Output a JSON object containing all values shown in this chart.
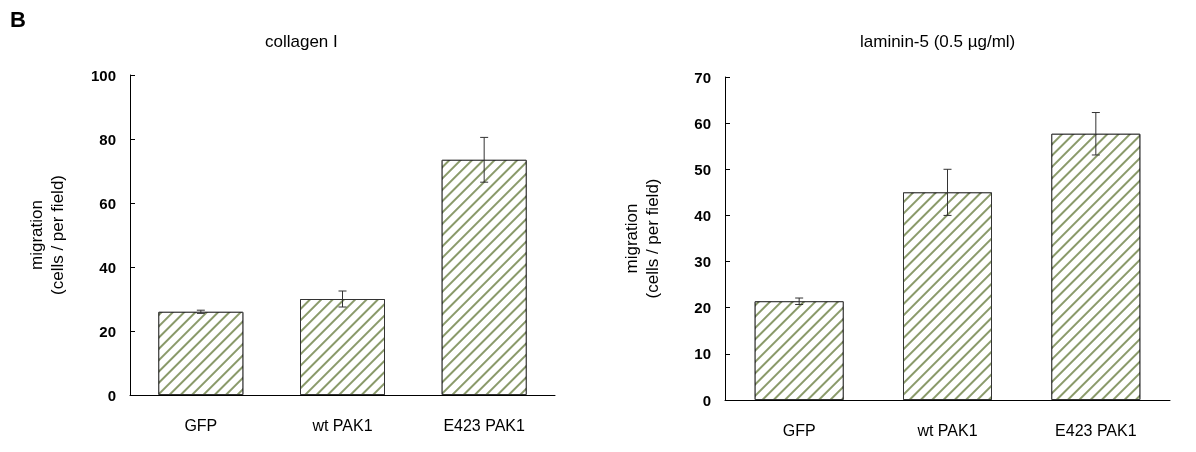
{
  "chart_data": [
    {
      "type": "bar",
      "title": "collagen I",
      "ylabel": "migration\n(cells / per field)",
      "annotations": [
        "B"
      ],
      "categories": [
        "GFP",
        "wt PAK1",
        "E423 PAK1"
      ],
      "values": [
        26,
        30,
        73.5
      ],
      "errors": [
        0.5,
        2.5,
        7
      ],
      "color": "#8a9a6a",
      "ylim": [
        0,
        100
      ],
      "yticks": [
        0,
        20,
        40,
        60,
        80,
        100
      ],
      "grid": false
    },
    {
      "type": "bar",
      "title": "laminin-5 (0.5 µg/ml)",
      "ylabel": "migration\n(cells / per field)",
      "categories": [
        "GFP",
        "wt PAK1",
        "E423 PAK1"
      ],
      "values": [
        21.4,
        45,
        57.7
      ],
      "errors": [
        0.7,
        5,
        4.6
      ],
      "color": "#8a9a6a",
      "ylim": [
        0,
        70
      ],
      "yticks": [
        0,
        10,
        20,
        30,
        40,
        50,
        60,
        70
      ],
      "grid": false
    }
  ]
}
